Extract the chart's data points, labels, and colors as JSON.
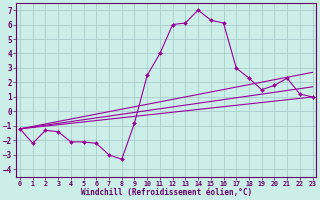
{
  "xlabel": "Windchill (Refroidissement éolien,°C)",
  "background_color": "#cceee8",
  "grid_color": "#aacccc",
  "line_color": "#990099",
  "x_ticks": [
    0,
    1,
    2,
    3,
    4,
    5,
    6,
    7,
    8,
    9,
    10,
    11,
    12,
    13,
    14,
    15,
    16,
    17,
    18,
    19,
    20,
    21,
    22,
    23
  ],
  "y_ticks": [
    -4,
    -3,
    -2,
    -1,
    0,
    1,
    2,
    3,
    4,
    5,
    6,
    7
  ],
  "ylim": [
    -4.5,
    7.5
  ],
  "xlim": [
    -0.3,
    23.3
  ],
  "series1_x": [
    0,
    1,
    2,
    3,
    4,
    5,
    6,
    7,
    8,
    9,
    10,
    11,
    12,
    13,
    14,
    15,
    16,
    17,
    18,
    19,
    20,
    21,
    22,
    23
  ],
  "series1_y": [
    -1.2,
    -2.2,
    -1.3,
    -1.4,
    -2.1,
    -2.1,
    -2.2,
    -3.0,
    -3.3,
    -0.8,
    2.5,
    4.0,
    6.0,
    6.1,
    7.0,
    6.3,
    6.1,
    3.0,
    2.3,
    1.5,
    1.8,
    2.3,
    1.2,
    1.0
  ],
  "line1_x": [
    0,
    23
  ],
  "line1_y": [
    -1.2,
    1.0
  ],
  "line2_x": [
    0,
    23
  ],
  "line2_y": [
    -1.2,
    1.7
  ],
  "line3_x": [
    0,
    23
  ],
  "line3_y": [
    -1.2,
    2.7
  ]
}
